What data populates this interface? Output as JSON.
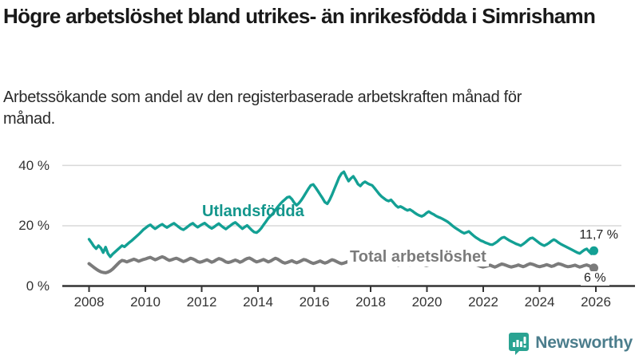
{
  "title": "Högre arbetslöshet bland utrikes- än inrikesfödda i Simrishamn",
  "subtitle": "Arbetssökande som andel av den registerbaserade arbetskraften månad för månad.",
  "branding": {
    "name": "Newsworthy",
    "icon": "newsworthy-speech-bubble-bar-chart-icon",
    "icon_color": "#2aa392",
    "text_color": "#4b7d8c"
  },
  "chart_data": {
    "type": "line",
    "title": "Högre arbetslöshet bland utrikes- än inrikesfödda i Simrishamn",
    "subtitle": "Arbetssökande som andel av den registerbaserade arbetskraften månad för månad.",
    "x_unit": "month",
    "x_start": "2008-01",
    "x_end": "2025-11",
    "x_tick_labels": [
      "2008",
      "2010",
      "2012",
      "2014",
      "2016",
      "2018",
      "2020",
      "2022",
      "2024",
      "2026"
    ],
    "y_tick_labels": [
      "0 %",
      "20 %",
      "40 %"
    ],
    "y_ticks": [
      0,
      20,
      40
    ],
    "ylim": [
      0,
      40
    ],
    "grid": "horizontal",
    "legend_position": "inline-labels",
    "colors": {
      "grid": "#d9d9d9",
      "axis": "#333333"
    },
    "series": [
      {
        "name": "Utlandsfödda",
        "color": "#13a094",
        "end_label": "11,7 %",
        "end_value": 11.7,
        "values": [
          15.5,
          14.4,
          13.2,
          12.4,
          13.4,
          12.6,
          11.1,
          12.9,
          10.8,
          9.7,
          10.6,
          11.3,
          12.0,
          12.7,
          13.4,
          13.0,
          13.7,
          14.4,
          15.0,
          15.7,
          16.4,
          17.1,
          17.9,
          18.7,
          19.3,
          19.9,
          20.3,
          19.6,
          19.0,
          19.5,
          20.1,
          20.5,
          19.9,
          19.4,
          19.9,
          20.4,
          20.8,
          20.2,
          19.6,
          19.0,
          18.7,
          19.2,
          19.8,
          20.4,
          20.8,
          20.1,
          19.5,
          20.0,
          20.5,
          20.9,
          20.2,
          19.6,
          19.1,
          19.6,
          20.2,
          20.7,
          20.0,
          19.4,
          18.9,
          19.5,
          20.1,
          20.7,
          21.1,
          20.4,
          19.7,
          19.0,
          19.6,
          20.1,
          19.3,
          18.5,
          17.9,
          17.7,
          18.3,
          19.2,
          20.3,
          21.4,
          22.5,
          23.3,
          24.1,
          25.2,
          26.3,
          27.2,
          28.0,
          28.7,
          29.4,
          29.6,
          28.8,
          27.6,
          26.8,
          27.5,
          28.5,
          29.7,
          31.0,
          32.3,
          33.4,
          33.7,
          32.7,
          31.5,
          30.3,
          29.1,
          27.8,
          27.3,
          28.6,
          30.3,
          32.2,
          34.1,
          36.0,
          37.3,
          37.9,
          36.3,
          34.8,
          35.7,
          36.4,
          35.2,
          33.8,
          33.2,
          34.1,
          34.6,
          34.1,
          33.7,
          33.4,
          32.5,
          31.5,
          30.5,
          29.7,
          29.1,
          28.5,
          28.2,
          28.6,
          27.7,
          26.8,
          26.1,
          26.4,
          26.0,
          25.5,
          25.1,
          25.4,
          24.9,
          24.3,
          23.8,
          23.4,
          23.1,
          23.5,
          24.2,
          24.7,
          24.2,
          23.8,
          23.3,
          22.9,
          22.6,
          22.2,
          21.8,
          21.3,
          20.7,
          20.0,
          19.4,
          18.9,
          18.4,
          17.9,
          17.5,
          17.8,
          18.1,
          17.4,
          16.7,
          16.1,
          15.6,
          15.1,
          14.8,
          14.4,
          14.1,
          13.8,
          13.7,
          14.2,
          14.7,
          15.4,
          16.0,
          16.2,
          15.7,
          15.2,
          14.8,
          14.4,
          14.0,
          13.7,
          13.4,
          13.9,
          14.5,
          15.2,
          15.8,
          16.0,
          15.4,
          14.8,
          14.2,
          13.7,
          13.4,
          13.8,
          14.3,
          14.9,
          15.4,
          15.0,
          14.4,
          13.9,
          13.5,
          13.1,
          12.7,
          12.3,
          11.9,
          11.5,
          11.1,
          10.8,
          11.4,
          12.0,
          12.3,
          11.4,
          10.7,
          11.7
        ]
      },
      {
        "name": "Total arbetslöshet",
        "color": "#7b7b7b",
        "end_label": "6 %",
        "end_value": 6.0,
        "values": [
          7.4,
          6.8,
          6.2,
          5.6,
          5.1,
          4.7,
          4.5,
          4.4,
          4.6,
          5.0,
          5.6,
          6.4,
          7.2,
          8.0,
          8.5,
          8.3,
          8.0,
          8.3,
          8.6,
          8.9,
          8.6,
          8.2,
          8.5,
          8.8,
          9.0,
          9.3,
          9.5,
          9.1,
          8.7,
          9.0,
          9.4,
          9.7,
          9.4,
          8.9,
          8.5,
          8.7,
          9.0,
          9.2,
          8.9,
          8.5,
          8.1,
          8.4,
          8.8,
          9.2,
          9.0,
          8.6,
          8.1,
          7.9,
          8.1,
          8.4,
          8.7,
          8.3,
          7.9,
          8.2,
          8.7,
          9.1,
          8.9,
          8.5,
          8.0,
          7.8,
          8.0,
          8.3,
          8.6,
          8.3,
          7.9,
          8.2,
          8.7,
          9.1,
          9.3,
          8.9,
          8.4,
          8.0,
          8.2,
          8.5,
          8.8,
          8.4,
          8.0,
          8.3,
          8.8,
          9.2,
          8.9,
          8.4,
          7.9,
          7.6,
          7.8,
          8.1,
          8.4,
          8.0,
          7.7,
          8.0,
          8.4,
          8.8,
          8.6,
          8.2,
          7.8,
          7.5,
          7.7,
          8.0,
          8.3,
          7.9,
          7.6,
          7.9,
          8.3,
          8.7,
          8.5,
          8.1,
          7.7,
          7.4,
          7.6,
          7.9,
          8.2,
          7.8,
          7.5,
          7.8,
          8.2,
          8.5,
          8.3,
          7.9,
          7.5,
          7.2,
          7.4,
          7.7,
          8.0,
          7.6,
          7.3,
          7.6,
          7.9,
          8.2,
          8.0,
          7.6,
          7.2,
          6.9,
          7.1,
          7.4,
          7.7,
          7.4,
          7.0,
          7.3,
          7.7,
          8.0,
          7.8,
          7.4,
          7.0,
          6.8,
          7.0,
          7.4,
          7.9,
          8.3,
          8.6,
          8.9,
          9.1,
          8.8,
          8.5,
          8.1,
          7.8,
          7.6,
          7.8,
          8.0,
          7.7,
          7.4,
          7.1,
          7.3,
          7.6,
          7.4,
          7.1,
          6.8,
          6.5,
          6.3,
          6.5,
          6.7,
          6.9,
          6.6,
          6.3,
          6.6,
          7.0,
          7.3,
          7.1,
          6.8,
          6.5,
          6.3,
          6.5,
          6.7,
          7.0,
          6.7,
          6.4,
          6.7,
          7.1,
          7.4,
          7.2,
          6.9,
          6.6,
          6.4,
          6.6,
          6.8,
          7.1,
          6.8,
          6.5,
          6.7,
          7.1,
          7.4,
          7.2,
          6.9,
          6.6,
          6.4,
          6.5,
          6.7,
          6.9,
          6.6,
          6.3,
          6.5,
          6.8,
          7.0,
          6.7,
          6.3,
          6.0
        ]
      }
    ]
  }
}
